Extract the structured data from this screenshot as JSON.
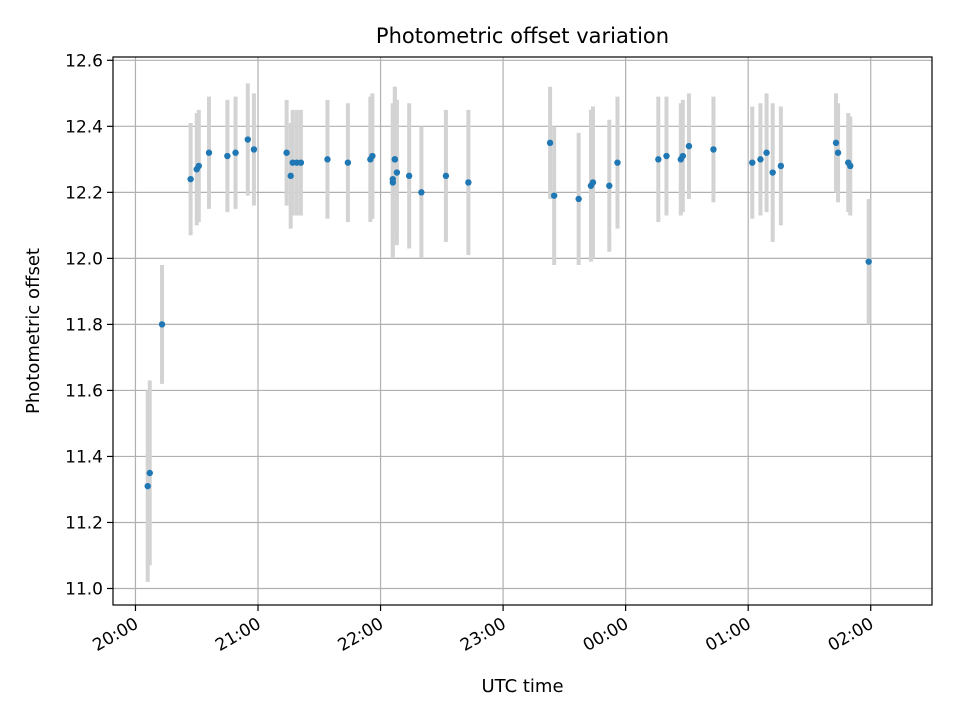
{
  "chart_data": {
    "type": "scatter",
    "title": "Photometric offset variation",
    "xlabel": "UTC time",
    "ylabel": "Photometric offset",
    "xlim": [
      "19:49",
      "02:30"
    ],
    "ylim": [
      10.95,
      12.61
    ],
    "xticks": [
      "20:00",
      "21:00",
      "22:00",
      "23:00",
      "00:00",
      "01:00",
      "02:00"
    ],
    "yticks": [
      "11.0",
      "11.2",
      "11.4",
      "11.6",
      "11.8",
      "12.0",
      "12.2",
      "12.4",
      "12.6"
    ],
    "grid": true,
    "colors": {
      "point": "#1f77b4",
      "errorbar": "#d3d3d3",
      "grid": "#b0b0b0",
      "axes": "#000000"
    },
    "series": [
      {
        "x": [
          "20:06",
          "20:07",
          "20:13",
          "20:27",
          "20:30",
          "20:31",
          "20:36",
          "20:45",
          "20:49",
          "20:55",
          "20:58",
          "21:14",
          "21:16",
          "21:17",
          "21:19",
          "21:21",
          "21:34",
          "21:44",
          "21:55",
          "21:56",
          "22:06",
          "22:06",
          "22:07",
          "22:07",
          "22:08",
          "22:14",
          "22:20",
          "22:32",
          "22:43",
          "23:23",
          "23:25",
          "23:37",
          "23:43",
          "23:44",
          "23:52",
          "23:56",
          "00:16",
          "00:20",
          "00:27",
          "00:28",
          "00:31",
          "00:43",
          "01:02",
          "01:06",
          "01:09",
          "01:12",
          "01:16",
          "01:43",
          "01:44",
          "01:49",
          "01:50",
          "01:59"
        ],
        "y": [
          11.31,
          11.35,
          11.8,
          12.24,
          12.27,
          12.28,
          12.32,
          12.31,
          12.32,
          12.36,
          12.33,
          12.32,
          12.25,
          12.29,
          12.29,
          12.29,
          12.3,
          12.29,
          12.3,
          12.31,
          12.23,
          12.24,
          12.3,
          12.3,
          12.26,
          12.25,
          12.2,
          12.25,
          12.23,
          12.35,
          12.19,
          12.18,
          12.22,
          12.23,
          12.22,
          12.29,
          12.3,
          12.31,
          12.3,
          12.31,
          12.34,
          12.33,
          12.29,
          12.3,
          12.32,
          12.26,
          12.28,
          12.35,
          12.32,
          12.29,
          12.28,
          11.99
        ],
        "yerr": [
          0.29,
          0.28,
          0.18,
          0.17,
          0.17,
          0.17,
          0.17,
          0.17,
          0.17,
          0.17,
          0.17,
          0.16,
          0.16,
          0.16,
          0.16,
          0.16,
          0.18,
          0.18,
          0.19,
          0.19,
          0.23,
          0.23,
          0.22,
          0.22,
          0.22,
          0.22,
          0.2,
          0.2,
          0.22,
          0.17,
          0.21,
          0.2,
          0.23,
          0.23,
          0.2,
          0.2,
          0.19,
          0.18,
          0.17,
          0.17,
          0.16,
          0.16,
          0.17,
          0.17,
          0.18,
          0.21,
          0.18,
          0.15,
          0.15,
          0.15,
          0.15,
          0.19
        ]
      }
    ]
  }
}
